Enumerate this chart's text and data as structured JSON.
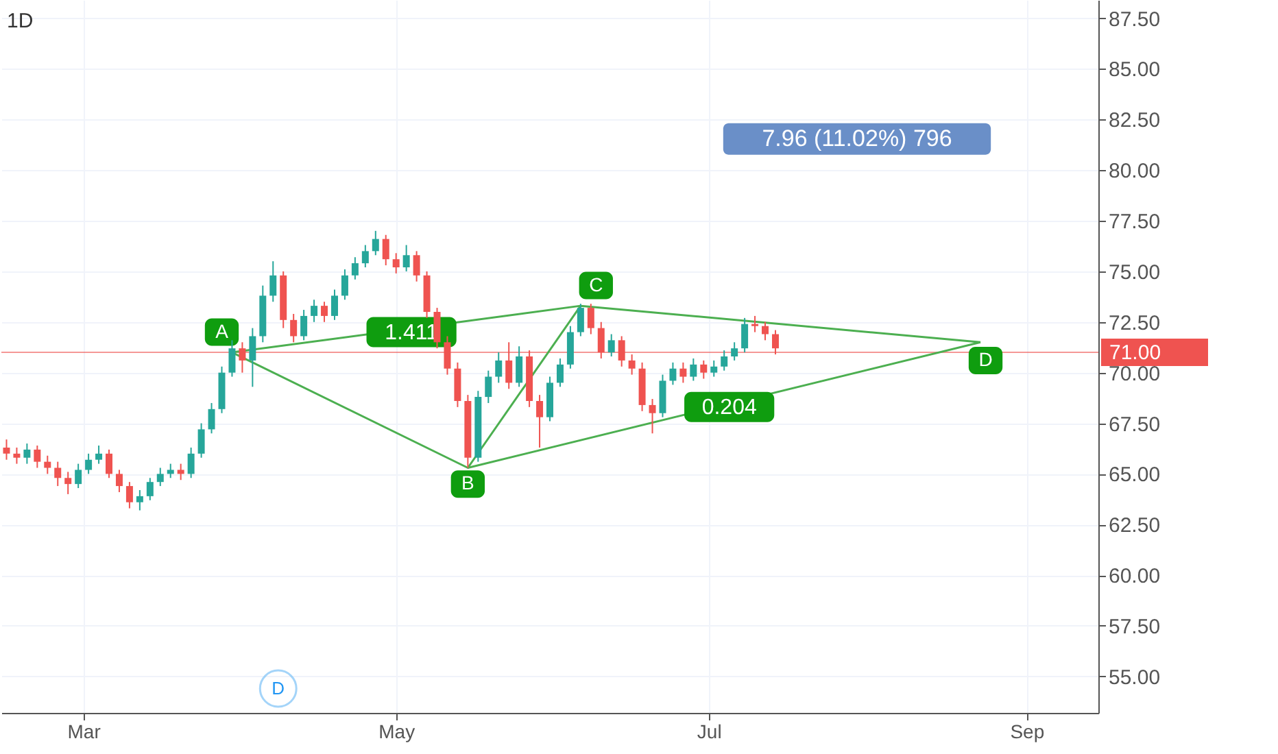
{
  "chart_data": {
    "type": "candlestick",
    "title": "1D",
    "x": [
      "--02-15",
      "--02-17",
      "--02-19",
      "--02-21",
      "--02-23",
      "--02-25",
      "--02-27",
      "--02-29",
      "--03-02",
      "--03-04",
      "--03-06",
      "--03-08",
      "--03-10",
      "--03-12",
      "--03-14",
      "--03-16",
      "--03-18",
      "--03-20",
      "--03-22",
      "--03-24",
      "--03-26",
      "--03-28",
      "--03-30",
      "--04-01",
      "--04-03",
      "--04-05",
      "--04-07",
      "--04-09",
      "--04-11",
      "--04-13",
      "--04-15",
      "--04-17",
      "--04-19",
      "--04-21",
      "--04-23",
      "--04-25",
      "--04-27",
      "--04-29",
      "--05-01",
      "--05-03",
      "--05-05",
      "--05-07",
      "--05-09",
      "--05-11",
      "--05-13",
      "--05-15",
      "--05-17",
      "--05-19",
      "--05-21",
      "--05-23",
      "--05-25",
      "--05-27",
      "--05-29",
      "--05-31",
      "--06-02",
      "--06-04",
      "--06-06",
      "--06-08",
      "--06-10",
      "--06-12",
      "--06-14",
      "--06-16",
      "--06-18",
      "--06-20",
      "--06-22",
      "--06-24",
      "--06-26",
      "--06-28",
      "--06-30",
      "--07-02",
      "--07-04",
      "--07-06",
      "--07-08",
      "--07-10",
      "--07-12",
      "--07-14"
    ],
    "ohlc": [
      [
        66.3,
        66.7,
        65.7,
        66.0
      ],
      [
        66.0,
        66.3,
        65.5,
        65.8
      ],
      [
        65.8,
        66.5,
        65.5,
        66.2
      ],
      [
        66.2,
        66.4,
        65.3,
        65.6
      ],
      [
        65.6,
        65.9,
        65.0,
        65.3
      ],
      [
        65.3,
        65.6,
        64.4,
        64.8
      ],
      [
        64.8,
        65.1,
        64.0,
        64.5
      ],
      [
        64.5,
        65.5,
        64.3,
        65.2
      ],
      [
        65.2,
        66.0,
        65.0,
        65.7
      ],
      [
        65.7,
        66.4,
        65.5,
        66.0
      ],
      [
        66.0,
        66.2,
        64.8,
        65.0
      ],
      [
        65.0,
        65.2,
        64.1,
        64.4
      ],
      [
        64.4,
        64.6,
        63.3,
        63.6
      ],
      [
        63.6,
        64.2,
        63.2,
        63.9
      ],
      [
        63.9,
        64.8,
        63.7,
        64.6
      ],
      [
        64.6,
        65.3,
        64.4,
        65.0
      ],
      [
        65.0,
        65.5,
        64.8,
        65.2
      ],
      [
        65.2,
        65.5,
        64.7,
        65.0
      ],
      [
        65.0,
        66.3,
        64.8,
        66.0
      ],
      [
        66.0,
        67.5,
        65.8,
        67.2
      ],
      [
        67.2,
        68.5,
        67.0,
        68.2
      ],
      [
        68.2,
        70.3,
        68.0,
        70.0
      ],
      [
        70.0,
        71.6,
        69.8,
        71.2
      ],
      [
        71.2,
        71.5,
        70.0,
        70.6
      ],
      [
        70.6,
        72.2,
        69.3,
        71.8
      ],
      [
        71.8,
        74.3,
        71.5,
        73.8
      ],
      [
        73.8,
        75.5,
        73.5,
        74.8
      ],
      [
        74.8,
        75.0,
        72.2,
        72.6
      ],
      [
        72.6,
        72.9,
        71.5,
        71.8
      ],
      [
        71.8,
        73.1,
        71.6,
        72.8
      ],
      [
        72.8,
        73.6,
        72.5,
        73.3
      ],
      [
        73.3,
        73.5,
        72.5,
        72.8
      ],
      [
        72.8,
        74.1,
        72.6,
        73.8
      ],
      [
        73.8,
        75.1,
        73.6,
        74.8
      ],
      [
        74.8,
        75.7,
        74.6,
        75.4
      ],
      [
        75.4,
        76.3,
        75.2,
        76.0
      ],
      [
        76.0,
        77.0,
        75.8,
        76.6
      ],
      [
        76.6,
        76.8,
        75.3,
        75.6
      ],
      [
        75.6,
        75.9,
        74.9,
        75.2
      ],
      [
        75.2,
        76.3,
        75.0,
        75.8
      ],
      [
        75.8,
        76.0,
        74.5,
        74.8
      ],
      [
        74.8,
        75.0,
        72.7,
        73.0
      ],
      [
        73.0,
        73.2,
        71.2,
        71.5
      ],
      [
        71.5,
        71.8,
        69.9,
        70.2
      ],
      [
        70.2,
        70.5,
        68.3,
        68.6
      ],
      [
        68.6,
        68.9,
        65.3,
        65.8
      ],
      [
        65.8,
        69.1,
        65.6,
        68.8
      ],
      [
        68.8,
        70.1,
        68.5,
        69.8
      ],
      [
        69.8,
        71.0,
        69.5,
        70.6
      ],
      [
        70.6,
        71.5,
        69.2,
        69.5
      ],
      [
        69.5,
        71.3,
        69.3,
        70.8
      ],
      [
        70.8,
        71.1,
        68.3,
        68.6
      ],
      [
        68.6,
        68.9,
        66.3,
        67.8
      ],
      [
        67.8,
        69.8,
        67.6,
        69.5
      ],
      [
        69.5,
        70.7,
        69.3,
        70.4
      ],
      [
        70.4,
        72.3,
        70.2,
        72.0
      ],
      [
        72.0,
        73.4,
        71.8,
        73.2
      ],
      [
        73.2,
        73.4,
        71.9,
        72.2
      ],
      [
        72.2,
        72.5,
        70.7,
        71.0
      ],
      [
        71.0,
        71.9,
        70.8,
        71.6
      ],
      [
        71.6,
        71.8,
        70.3,
        70.6
      ],
      [
        70.6,
        70.9,
        69.9,
        70.2
      ],
      [
        70.2,
        70.5,
        68.1,
        68.4
      ],
      [
        68.4,
        68.7,
        67.0,
        68.0
      ],
      [
        68.0,
        69.9,
        67.8,
        69.6
      ],
      [
        69.6,
        70.5,
        69.4,
        70.2
      ],
      [
        70.2,
        70.5,
        69.5,
        69.8
      ],
      [
        69.8,
        70.7,
        69.6,
        70.4
      ],
      [
        70.4,
        70.6,
        69.7,
        70.0
      ],
      [
        70.0,
        70.6,
        69.8,
        70.3
      ],
      [
        70.3,
        71.1,
        70.1,
        70.8
      ],
      [
        70.8,
        71.5,
        70.6,
        71.2
      ],
      [
        71.2,
        72.7,
        71.0,
        72.4
      ],
      [
        72.4,
        72.8,
        72.0,
        72.3
      ],
      [
        72.3,
        72.5,
        71.6,
        71.9
      ],
      [
        71.9,
        72.1,
        70.9,
        71.2
      ]
    ],
    "colors": [
      "#ef5350",
      "#ef5350",
      "#26a69a",
      "#ef5350",
      "#ef5350",
      "#ef5350",
      "#ef5350",
      "#26a69a",
      "#26a69a",
      "#26a69a",
      "#ef5350",
      "#ef5350",
      "#ef5350",
      "#26a69a",
      "#26a69a",
      "#26a69a",
      "#26a69a",
      "#ef5350",
      "#26a69a",
      "#26a69a",
      "#26a69a",
      "#26a69a",
      "#26a69a",
      "#ef5350",
      "#26a69a",
      "#26a69a",
      "#26a69a",
      "#ef5350",
      "#ef5350",
      "#26a69a",
      "#26a69a",
      "#ef5350",
      "#26a69a",
      "#26a69a",
      "#26a69a",
      "#26a69a",
      "#26a69a",
      "#ef5350",
      "#ef5350",
      "#26a69a",
      "#ef5350",
      "#ef5350",
      "#ef5350",
      "#ef5350",
      "#ef5350",
      "#ef5350",
      "#26a69a",
      "#26a69a",
      "#26a69a",
      "#ef5350",
      "#26a69a",
      "#ef5350",
      "#ef5350",
      "#26a69a",
      "#26a69a",
      "#26a69a",
      "#26a69a",
      "#ef5350",
      "#ef5350",
      "#26a69a",
      "#ef5350",
      "#ef5350",
      "#ef5350",
      "#ef5350",
      "#26a69a",
      "#26a69a",
      "#ef5350",
      "#26a69a",
      "#ef5350",
      "#26a69a",
      "#26a69a",
      "#26a69a",
      "#26a69a",
      "#ef5350",
      "#ef5350",
      "#ef5350"
    ],
    "series": [
      {
        "type": "line",
        "color": "#4caf50",
        "x": [
          "--03-30",
          "--05-15",
          "--06-06",
          "--08-23"
        ],
        "values": [
          71.0,
          65.3,
          73.3,
          71.5
        ]
      },
      {
        "type": "line",
        "color": "#4caf50",
        "x": [
          "--03-30",
          "--06-06"
        ],
        "values": [
          71.0,
          73.3
        ]
      },
      {
        "type": "line",
        "color": "#4caf50",
        "x": [
          "--05-15",
          "--08-23"
        ],
        "values": [
          65.3,
          71.5
        ]
      }
    ],
    "ref_lines": [
      {
        "axis": "y",
        "value": 71.0,
        "label": "71.00",
        "color": "#ef5350"
      }
    ],
    "annotations": [
      {
        "text": "A",
        "x": "--03-28",
        "y": 72.0
      },
      {
        "text": "B",
        "x": "--05-15",
        "y": 64.5
      },
      {
        "text": "C",
        "x": "--06-09",
        "y": 74.3
      },
      {
        "text": "D",
        "x": "--08-24",
        "y": 70.6
      },
      {
        "text": "1.411",
        "x": "--05-04",
        "y": 72.0
      },
      {
        "text": "0.204",
        "x": "--07-05",
        "y": 68.3
      },
      "7.96 (11.02%) 796",
      {
        "text": "D",
        "x": "--04-08",
        "y": 54.4
      }
    ],
    "xlim": [
      "--02-14",
      "--09-15"
    ],
    "xticks": [
      {
        "value": "--03-01",
        "label": "Mar"
      },
      {
        "value": "--05-01",
        "label": "May"
      },
      {
        "value": "--07-01",
        "label": "Jul"
      },
      {
        "value": "--09-01",
        "label": "Sep"
      }
    ],
    "ylim": [
      53.2,
      88.4
    ],
    "yticks": [
      {
        "value": 55,
        "label": "55.00"
      },
      {
        "value": 57.5,
        "label": "57.50"
      },
      {
        "value": 60,
        "label": "60.00"
      },
      {
        "value": 62.5,
        "label": "62.50"
      },
      {
        "value": 65,
        "label": "65.00"
      },
      {
        "value": 67.5,
        "label": "67.50"
      },
      {
        "value": 70,
        "label": "70.00"
      },
      {
        "value": 72.5,
        "label": "72.50"
      },
      {
        "value": 75,
        "label": "75.00"
      },
      {
        "value": 77.5,
        "label": "77.50"
      },
      {
        "value": 80,
        "label": "80.00"
      },
      {
        "value": 82.5,
        "label": "82.50"
      },
      {
        "value": 85,
        "label": "85.00"
      },
      {
        "value": 87.5,
        "label": "87.50"
      }
    ],
    "grid": true
  }
}
